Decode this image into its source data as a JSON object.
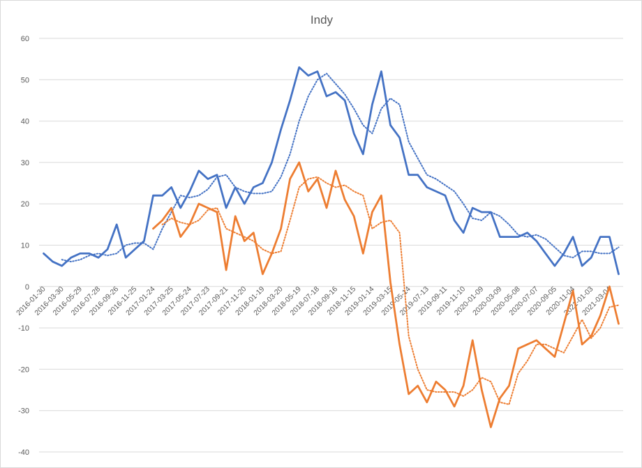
{
  "chart_data": {
    "type": "line",
    "title": "Indy",
    "xlabel": "",
    "ylabel": "",
    "ylim": [
      -40,
      60
    ],
    "yticks": [
      60,
      50,
      40,
      30,
      20,
      10,
      0,
      -10,
      -20,
      -30,
      -40
    ],
    "grid": true,
    "legend": "none",
    "x_tick_labels": [
      "2016-01-30",
      "2016-03-30",
      "2016-05-29",
      "2016-07-28",
      "2016-09-26",
      "2016-11-25",
      "2017-01-24",
      "2017-03-25",
      "2017-05-24",
      "2017-07-23",
      "2017-09-21",
      "2017-11-20",
      "2018-01-19",
      "2018-03-20",
      "2018-05-19",
      "2018-07-18",
      "2018-09-16",
      "2018-11-15",
      "2019-01-14",
      "2019-03-15",
      "2019-05-14",
      "2019-07-13",
      "2019-09-11",
      "2019-11-10",
      "2020-01-09",
      "2020-03-09",
      "2020-05-08",
      "2020-07-07",
      "2020-09-05",
      "2020-11-04",
      "2021-01-03",
      "2021-03-04"
    ],
    "series": [
      {
        "color": "#4472C4",
        "style": "solid",
        "values": [
          8,
          6,
          5,
          7,
          8,
          8,
          7,
          9,
          15,
          7,
          9,
          11,
          22,
          22,
          24,
          19,
          23,
          28,
          26,
          27,
          19,
          24,
          20,
          24,
          25,
          30,
          38,
          45,
          53,
          51,
          52,
          46,
          47,
          45,
          37,
          32,
          44,
          52,
          39,
          36,
          27,
          27,
          24,
          23,
          22,
          16,
          13,
          19,
          18,
          18,
          12,
          12,
          12,
          13,
          11,
          8,
          5,
          8,
          12,
          5,
          7,
          12,
          12,
          3
        ]
      },
      {
        "color": "#4472C4",
        "style": "dotted",
        "values": [
          null,
          null,
          6.5,
          6,
          6.5,
          7.5,
          8,
          7.5,
          8,
          10,
          10.5,
          10.5,
          9,
          14,
          18,
          22,
          21.5,
          22,
          23.5,
          26.5,
          27,
          24,
          23,
          22.5,
          22.5,
          23,
          26.5,
          32,
          40,
          46,
          50,
          51.5,
          49,
          46.5,
          43,
          39,
          37,
          43,
          45.5,
          44,
          35,
          31,
          27,
          26,
          24.5,
          23,
          20,
          16.5,
          16,
          18,
          17,
          15,
          12.5,
          12,
          12.5,
          11.5,
          9.5,
          7.5,
          7,
          8.5,
          8.5,
          8,
          8,
          9.5
        ]
      },
      {
        "color": "#ED7D31",
        "style": "solid",
        "values": [
          null,
          null,
          null,
          null,
          null,
          null,
          null,
          null,
          null,
          null,
          null,
          null,
          14,
          16,
          19,
          12,
          15,
          20,
          19,
          18,
          4,
          17,
          11,
          13,
          3,
          8,
          14,
          26,
          30,
          23,
          26,
          19,
          28,
          21,
          17,
          8,
          18,
          22,
          1,
          -14,
          -26,
          -24,
          -28,
          -23,
          -25,
          -29,
          -24,
          -13,
          -25,
          -34,
          -27,
          -24,
          -15,
          -14,
          -13,
          -15,
          -17,
          -9,
          -1,
          -14,
          -12,
          -7,
          0,
          -9
        ]
      },
      {
        "color": "#ED7D31",
        "style": "dotted",
        "values": [
          null,
          null,
          null,
          null,
          null,
          null,
          null,
          null,
          null,
          null,
          null,
          null,
          null,
          15,
          16.5,
          15.5,
          15,
          16,
          18.5,
          19,
          14,
          13,
          12,
          11,
          9,
          8,
          8.5,
          16,
          24,
          26,
          26.5,
          25,
          24,
          24.5,
          23,
          22,
          14,
          15.5,
          16,
          13,
          -12,
          -20,
          -25,
          -25.5,
          -25.5,
          -25.5,
          -26.5,
          -25,
          -22,
          -23,
          -28,
          -28.5,
          -21,
          -18,
          -14,
          -14,
          -15,
          -16,
          -12,
          -8,
          -12.5,
          -10,
          -5,
          -4.5
        ]
      }
    ]
  }
}
